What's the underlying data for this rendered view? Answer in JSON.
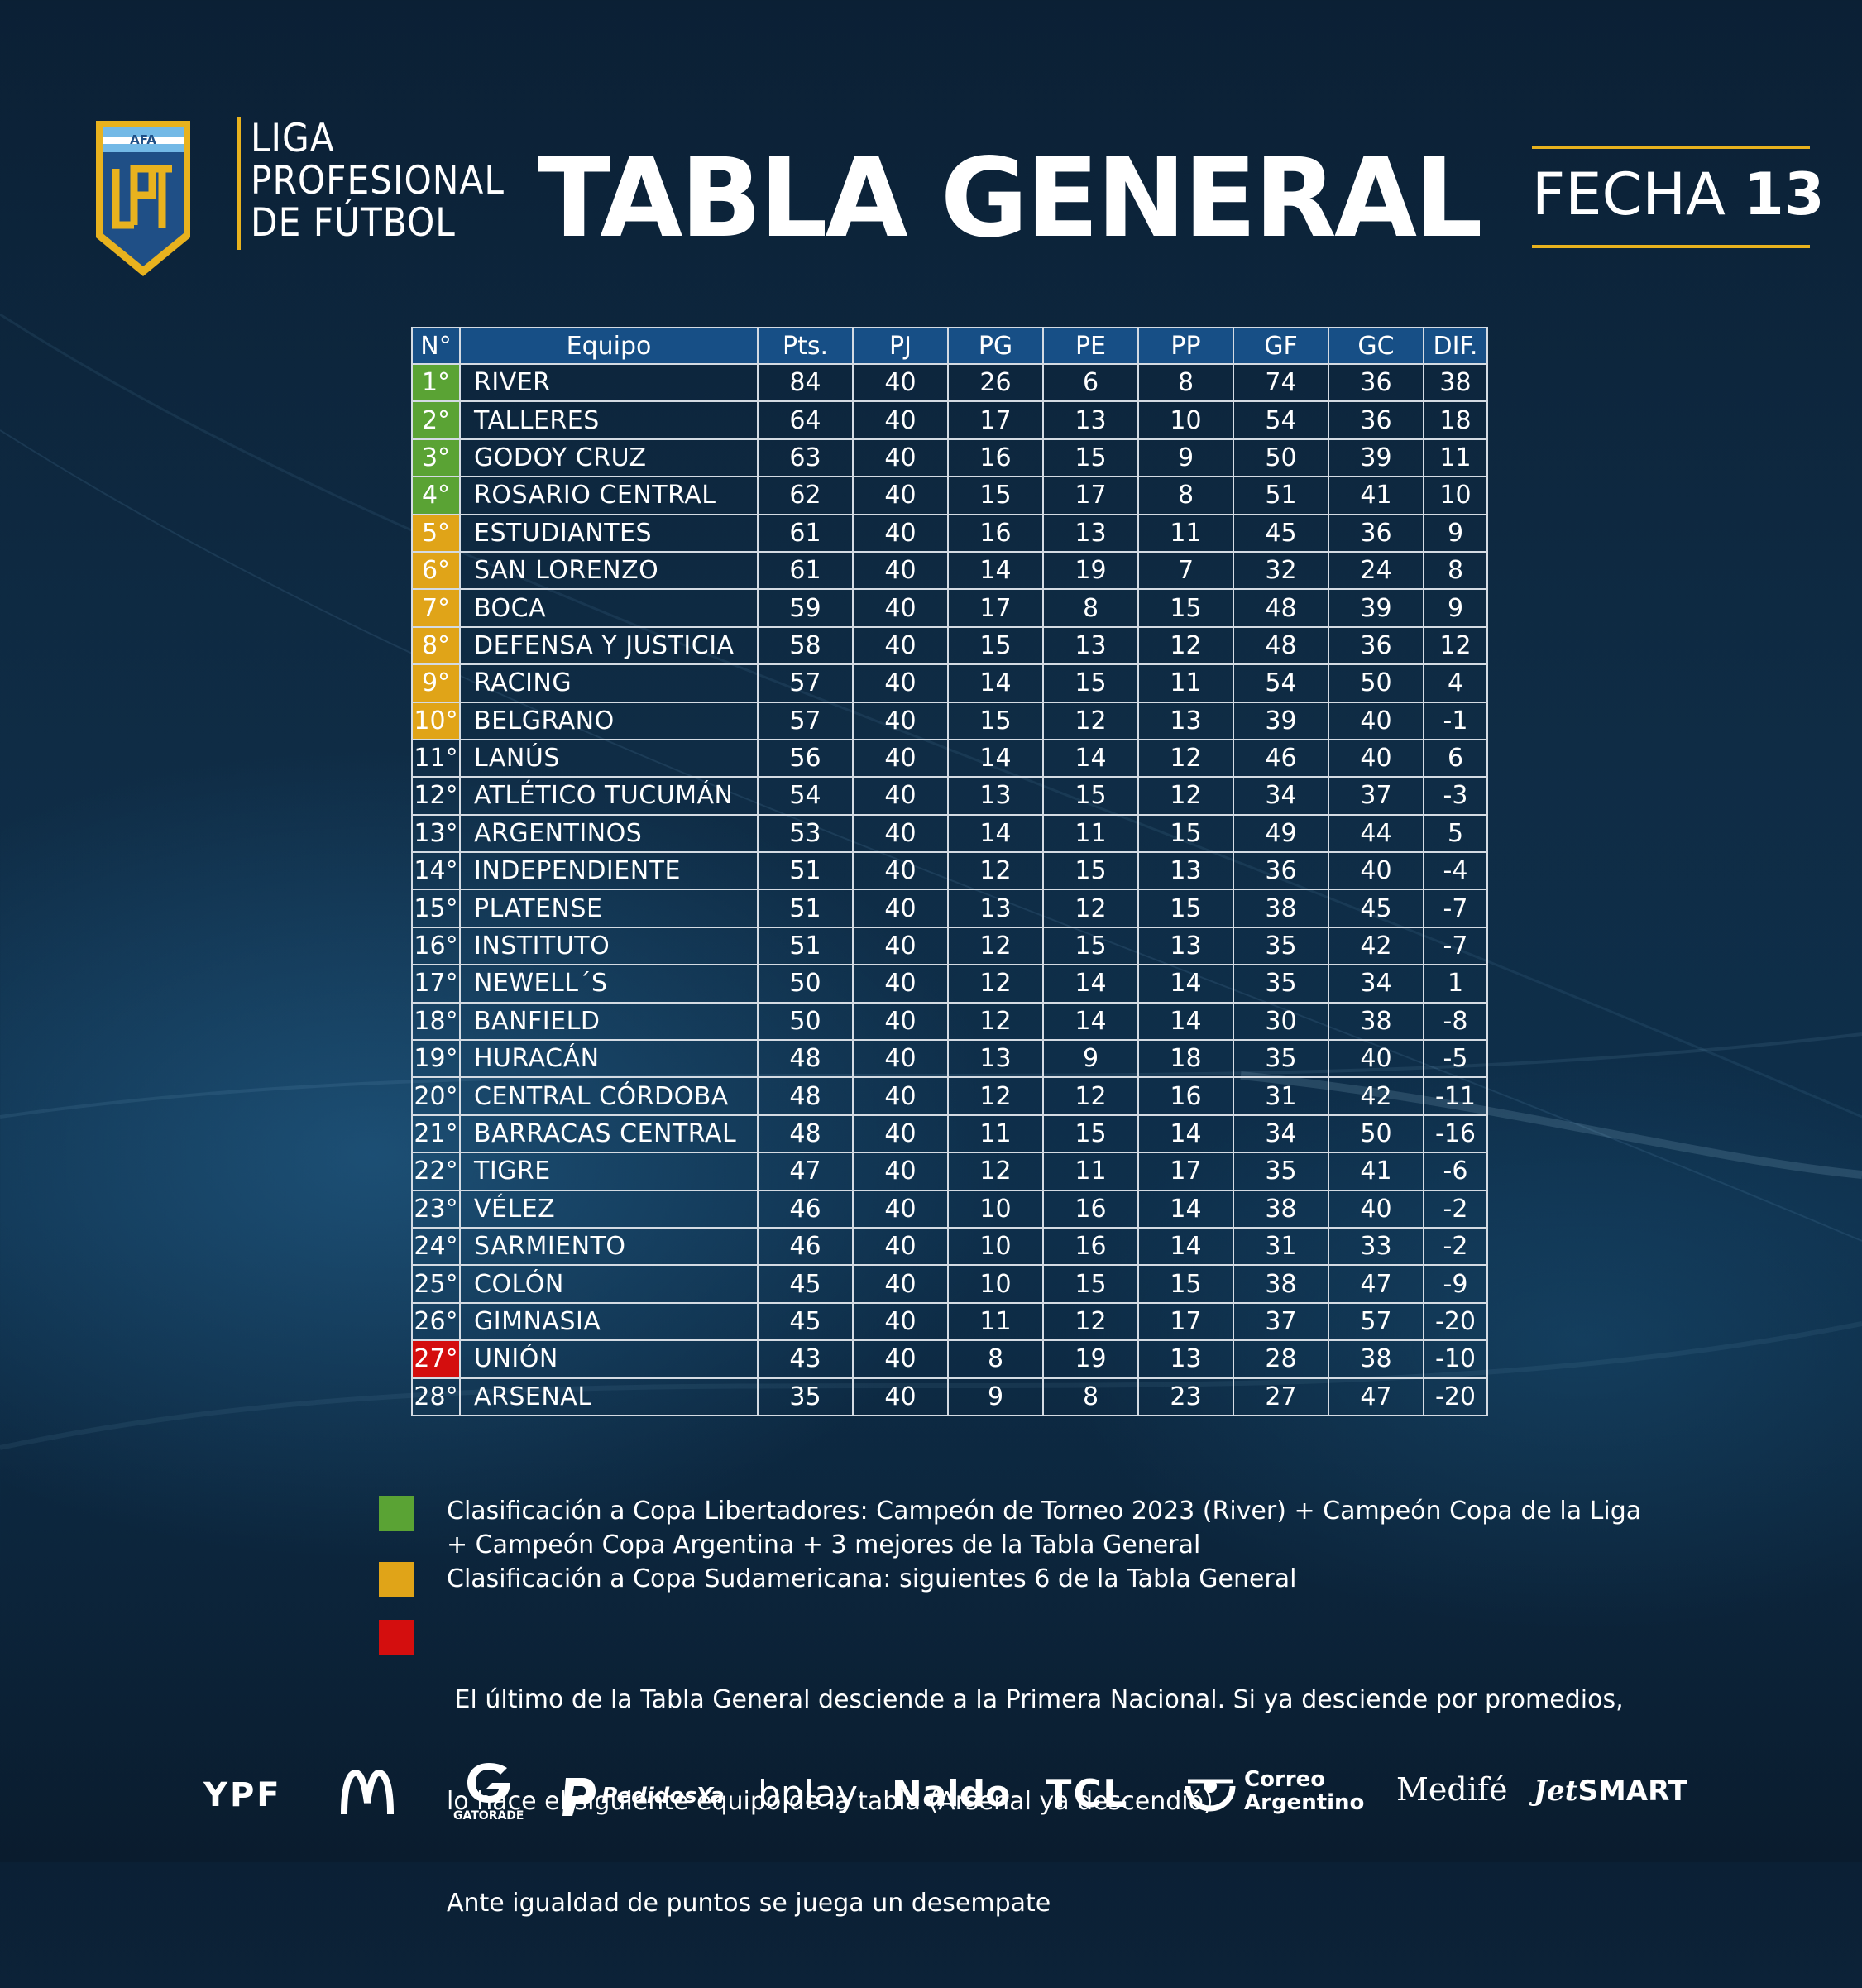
{
  "league": {
    "badge": "AFA",
    "monogram": "LPF",
    "name_lines": [
      "LIGA",
      "PROFESIONAL",
      "DE FÚTBOL"
    ]
  },
  "title": "TABLA GENERAL",
  "round": {
    "label": "FECHA",
    "number": "13"
  },
  "table": {
    "headers": [
      "N°",
      "Equipo",
      "Pts.",
      "PJ",
      "PG",
      "PE",
      "PP",
      "GF",
      "GC",
      "DIF."
    ],
    "rows": [
      [
        "1°",
        "RIVER",
        "84",
        "40",
        "26",
        "6",
        "8",
        "74",
        "36",
        "38"
      ],
      [
        "2°",
        "TALLERES",
        "64",
        "40",
        "17",
        "13",
        "10",
        "54",
        "36",
        "18"
      ],
      [
        "3°",
        "GODOY CRUZ",
        "63",
        "40",
        "16",
        "15",
        "9",
        "50",
        "39",
        "11"
      ],
      [
        "4°",
        "ROSARIO CENTRAL",
        "62",
        "40",
        "15",
        "17",
        "8",
        "51",
        "41",
        "10"
      ],
      [
        "5°",
        "ESTUDIANTES",
        "61",
        "40",
        "16",
        "13",
        "11",
        "45",
        "36",
        "9"
      ],
      [
        "6°",
        "SAN LORENZO",
        "61",
        "40",
        "14",
        "19",
        "7",
        "32",
        "24",
        "8"
      ],
      [
        "7°",
        "BOCA",
        "59",
        "40",
        "17",
        "8",
        "15",
        "48",
        "39",
        "9"
      ],
      [
        "8°",
        "DEFENSA Y JUSTICIA",
        "58",
        "40",
        "15",
        "13",
        "12",
        "48",
        "36",
        "12"
      ],
      [
        "9°",
        "RACING",
        "57",
        "40",
        "14",
        "15",
        "11",
        "54",
        "50",
        "4"
      ],
      [
        "10°",
        "BELGRANO",
        "57",
        "40",
        "15",
        "12",
        "13",
        "39",
        "40",
        "-1"
      ],
      [
        "11°",
        "LANÚS",
        "56",
        "40",
        "14",
        "14",
        "12",
        "46",
        "40",
        "6"
      ],
      [
        "12°",
        "ATLÉTICO TUCUMÁN",
        "54",
        "40",
        "13",
        "15",
        "12",
        "34",
        "37",
        "-3"
      ],
      [
        "13°",
        "ARGENTINOS",
        "53",
        "40",
        "14",
        "11",
        "15",
        "49",
        "44",
        "5"
      ],
      [
        "14°",
        "INDEPENDIENTE",
        "51",
        "40",
        "12",
        "15",
        "13",
        "36",
        "40",
        "-4"
      ],
      [
        "15°",
        "PLATENSE",
        "51",
        "40",
        "13",
        "12",
        "15",
        "38",
        "45",
        "-7"
      ],
      [
        "16°",
        "INSTITUTO",
        "51",
        "40",
        "12",
        "15",
        "13",
        "35",
        "42",
        "-7"
      ],
      [
        "17°",
        "NEWELL´S",
        "50",
        "40",
        "12",
        "14",
        "14",
        "35",
        "34",
        "1"
      ],
      [
        "18°",
        "BANFIELD",
        "50",
        "40",
        "12",
        "14",
        "14",
        "30",
        "38",
        "-8"
      ],
      [
        "19°",
        "HURACÁN",
        "48",
        "40",
        "13",
        "9",
        "18",
        "35",
        "40",
        "-5"
      ],
      [
        "20°",
        "CENTRAL CÓRDOBA",
        "48",
        "40",
        "12",
        "12",
        "16",
        "31",
        "42",
        "-11"
      ],
      [
        "21°",
        "BARRACAS CENTRAL",
        "48",
        "40",
        "11",
        "15",
        "14",
        "34",
        "50",
        "-16"
      ],
      [
        "22°",
        "TIGRE",
        "47",
        "40",
        "12",
        "11",
        "17",
        "35",
        "41",
        "-6"
      ],
      [
        "23°",
        "VÉLEZ",
        "46",
        "40",
        "10",
        "16",
        "14",
        "38",
        "40",
        "-2"
      ],
      [
        "24°",
        "SARMIENTO",
        "46",
        "40",
        "10",
        "16",
        "14",
        "31",
        "33",
        "-2"
      ],
      [
        "25°",
        "COLÓN",
        "45",
        "40",
        "10",
        "15",
        "15",
        "38",
        "47",
        "-9"
      ],
      [
        "26°",
        "GIMNASIA",
        "45",
        "40",
        "11",
        "12",
        "17",
        "37",
        "57",
        "-20"
      ],
      [
        "27°",
        "UNIÓN",
        "43",
        "40",
        "8",
        "19",
        "13",
        "28",
        "38",
        "-10"
      ],
      [
        "28°",
        "ARSENAL",
        "35",
        "40",
        "9",
        "8",
        "23",
        "27",
        "47",
        "-20"
      ]
    ],
    "row_zone": [
      "green",
      "green",
      "green",
      "green",
      "yellow",
      "yellow",
      "yellow",
      "yellow",
      "yellow",
      "yellow",
      "none",
      "none",
      "none",
      "none",
      "none",
      "none",
      "none",
      "none",
      "none",
      "none",
      "none",
      "none",
      "none",
      "none",
      "none",
      "none",
      "red",
      "none"
    ]
  },
  "legend": {
    "green": {
      "color": "#5aa334",
      "lines": [
        "Clasificación a Copa Libertadores: Campeón de Torneo 2023 (River) + Campeón Copa de la Liga",
        "+ Campeón Copa Argentina + 3 mejores de la Tabla General"
      ]
    },
    "yellow": {
      "color": "#e0a418",
      "lines": [
        "Clasificación a Copa Sudamericana: siguientes 6 de la Tabla General"
      ]
    },
    "red": {
      "color": "#d40e0e",
      "lines": [
        " El último de la Tabla General desciende a la Primera Nacional. Si ya desciende por promedios,",
        "lo hace el siguiente equipo de la tabla (Arsenal ya descendió).",
        "Ante igualdad de puntos se juega un desempate"
      ]
    }
  },
  "sponsors": {
    "ypf": "YPF",
    "gatorade": "GATORADE",
    "pedidosya": "PedidosYa",
    "bplay": "bplay",
    "naldo": "Naldo",
    "tcl": "TCL",
    "correo": [
      "Correo",
      "Argentino"
    ],
    "medife": "Medifé",
    "jetsmart_jet": "Jet",
    "jetsmart_smart": "SMART"
  },
  "colors": {
    "accent_gold": "#e8b21e",
    "header_blue": "#174f86",
    "zone_green": "#5aa334",
    "zone_yellow": "#e0a418",
    "zone_red": "#d40e0e"
  }
}
